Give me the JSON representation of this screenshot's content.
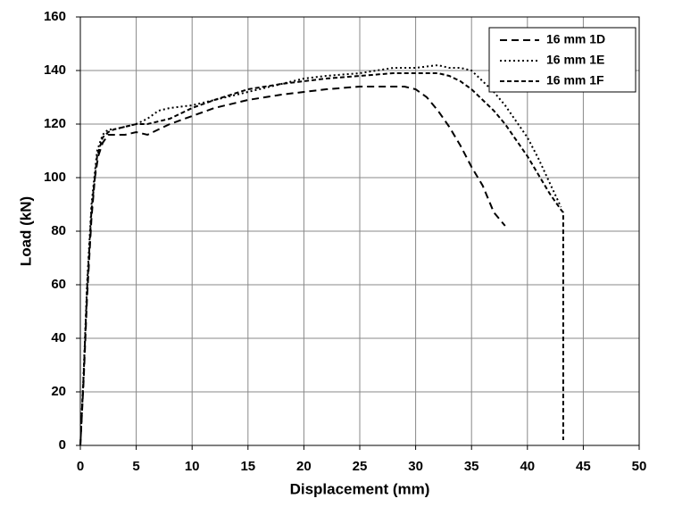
{
  "chart_data": {
    "type": "line",
    "xlabel": "Displacement (mm)",
    "ylabel": "Load (kN)",
    "xlim": [
      0,
      50
    ],
    "ylim": [
      0,
      160
    ],
    "xticks": [
      0,
      5,
      10,
      15,
      20,
      25,
      30,
      35,
      40,
      45,
      50
    ],
    "yticks": [
      0,
      20,
      40,
      60,
      80,
      100,
      120,
      140,
      160
    ],
    "grid": true,
    "legend": "upper right",
    "series": [
      {
        "name": "16 mm 1D",
        "color": "#000000",
        "dash": "8,5",
        "x": [
          0,
          0.3,
          0.6,
          1,
          1.3,
          1.6,
          2,
          2.5,
          3,
          4,
          5,
          6,
          7,
          8,
          10,
          12,
          15,
          18,
          20,
          22,
          25,
          27,
          28,
          29,
          30,
          31,
          32,
          33,
          34,
          35,
          36,
          37,
          38
        ],
        "values": [
          0,
          25,
          55,
          85,
          100,
          108,
          113,
          116,
          116,
          116,
          117,
          116,
          118,
          120,
          123,
          126,
          129,
          131,
          132,
          133,
          134,
          134,
          134,
          134,
          133,
          130,
          125,
          119,
          112,
          104,
          97,
          87,
          82
        ]
      },
      {
        "name": "16 mm 1E",
        "color": "#000000",
        "dash": "2,3",
        "x": [
          0,
          0.3,
          0.6,
          1,
          1.5,
          2,
          2.5,
          3,
          4,
          5,
          6,
          7,
          8,
          10,
          12,
          15,
          18,
          20,
          22,
          25,
          28,
          30,
          32,
          33,
          34,
          35,
          36,
          37,
          38,
          39,
          40,
          41,
          42,
          43
        ],
        "values": [
          0,
          28,
          60,
          90,
          110,
          116,
          118,
          118,
          119,
          120,
          122,
          125,
          126,
          127,
          129,
          132,
          135,
          137,
          138,
          139,
          141,
          141,
          142,
          141,
          141,
          140,
          136,
          132,
          127,
          121,
          115,
          107,
          98,
          89
        ]
      },
      {
        "name": "16 mm 1F",
        "color": "#000000",
        "dash": "5,3",
        "x": [
          0,
          0.3,
          0.6,
          1,
          1.5,
          2,
          2.5,
          3,
          4,
          5,
          6,
          7,
          8,
          10,
          12,
          15,
          18,
          20,
          22,
          25,
          28,
          30,
          32,
          33,
          34,
          35,
          36,
          37,
          38,
          39,
          40,
          41,
          42,
          43,
          43.2,
          43.2
        ],
        "values": [
          0,
          27,
          58,
          88,
          108,
          115,
          117,
          118,
          119,
          120,
          120,
          121,
          122,
          126,
          129,
          133,
          135,
          136,
          137,
          138,
          139,
          139,
          139,
          138,
          136,
          133,
          129,
          125,
          120,
          114,
          108,
          101,
          94,
          88,
          87,
          2
        ]
      }
    ]
  }
}
